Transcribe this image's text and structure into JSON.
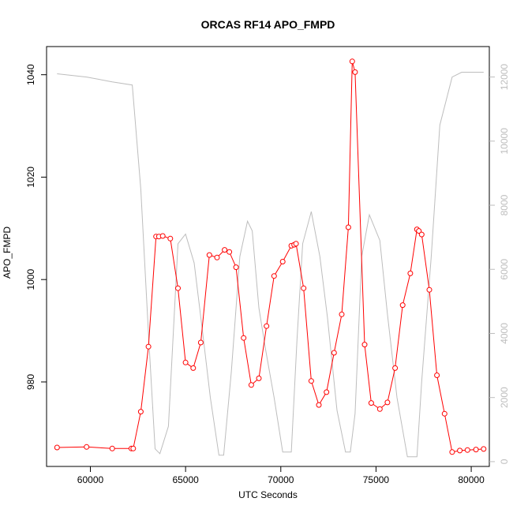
{
  "chart_data": {
    "type": "line",
    "title": "ORCAS RF14 APO_FMPD",
    "xlabel": "UTC Seconds",
    "ylabel": "APO_FMPD",
    "y2label": "",
    "xlim": [
      57700,
      80950
    ],
    "ylim": [
      963.5,
      1045.5
    ],
    "y2lim": [
      -150,
      12950
    ],
    "xticks": [
      60000,
      65000,
      70000,
      75000,
      80000
    ],
    "yticks": [
      980,
      1000,
      1020,
      1040
    ],
    "y2ticks": [
      0,
      2000,
      4000,
      6000,
      8000,
      10000,
      12000
    ],
    "grid": false,
    "legend": "none",
    "series": [
      {
        "color": "#ff0000",
        "markers": "open-circle",
        "x": [
          58250,
          59800,
          61150,
          62150,
          62250,
          62650,
          63050,
          63450,
          63600,
          63800,
          64200,
          64600,
          65000,
          65400,
          65800,
          66250,
          66650,
          67050,
          67300,
          67650,
          68050,
          68450,
          68850,
          69250,
          69650,
          70100,
          70550,
          70700,
          70800,
          71200,
          71600,
          72000,
          72400,
          72800,
          73200,
          73550,
          73750,
          73900,
          74400,
          74750,
          75200,
          75600,
          76000,
          76400,
          76800,
          77150,
          77250,
          77400,
          77800,
          78200,
          78600,
          79000,
          79400,
          79800,
          80250,
          80650
        ],
        "y": [
          967.2,
          967.3,
          967.0,
          967.0,
          967.0,
          974.2,
          986.9,
          1008.4,
          1008.4,
          1008.5,
          1008.0,
          998.3,
          983.8,
          982.7,
          987.7,
          1004.8,
          1004.3,
          1005.8,
          1005.4,
          1002.4,
          988.6,
          979.4,
          980.7,
          990.9,
          1000.7,
          1003.5,
          1006.6,
          1006.8,
          1007.0,
          998.3,
          980.2,
          975.5,
          978.0,
          985.7,
          993.2,
          1010.2,
          1042.6,
          1040.5,
          987.3,
          975.9,
          974.7,
          976.0,
          982.7,
          995.0,
          1001.2,
          1009.8,
          1009.5,
          1008.8,
          998.0,
          981.3,
          973.8,
          966.3,
          966.6,
          966.7,
          966.8,
          966.9
        ]
      },
      {
        "color": "#bdbdbd",
        "axis": "right",
        "x": [
          58250,
          59800,
          61150,
          62200,
          62650,
          63050,
          63400,
          63650,
          64100,
          64600,
          65000,
          65450,
          65900,
          66300,
          66750,
          67000,
          67400,
          67850,
          68250,
          68500,
          68850,
          69200,
          69650,
          70100,
          70550,
          70850,
          71150,
          71600,
          72050,
          72450,
          72950,
          73400,
          73650,
          73900,
          74250,
          74650,
          75200,
          75600,
          76100,
          76650,
          77150,
          77400,
          77900,
          78350,
          79000,
          79500,
          80650
        ],
        "y": [
          12100,
          12000,
          11850,
          11750,
          8500,
          4000,
          400,
          250,
          1100,
          6800,
          7100,
          6200,
          4000,
          2000,
          200,
          200,
          2800,
          6400,
          7500,
          7200,
          4800,
          3500,
          2000,
          300,
          300,
          3800,
          6800,
          7800,
          6400,
          4500,
          1600,
          300,
          300,
          1500,
          6400,
          7700,
          6900,
          4600,
          2000,
          150,
          150,
          2500,
          6400,
          10500,
          12000,
          12150,
          12150
        ]
      }
    ]
  }
}
